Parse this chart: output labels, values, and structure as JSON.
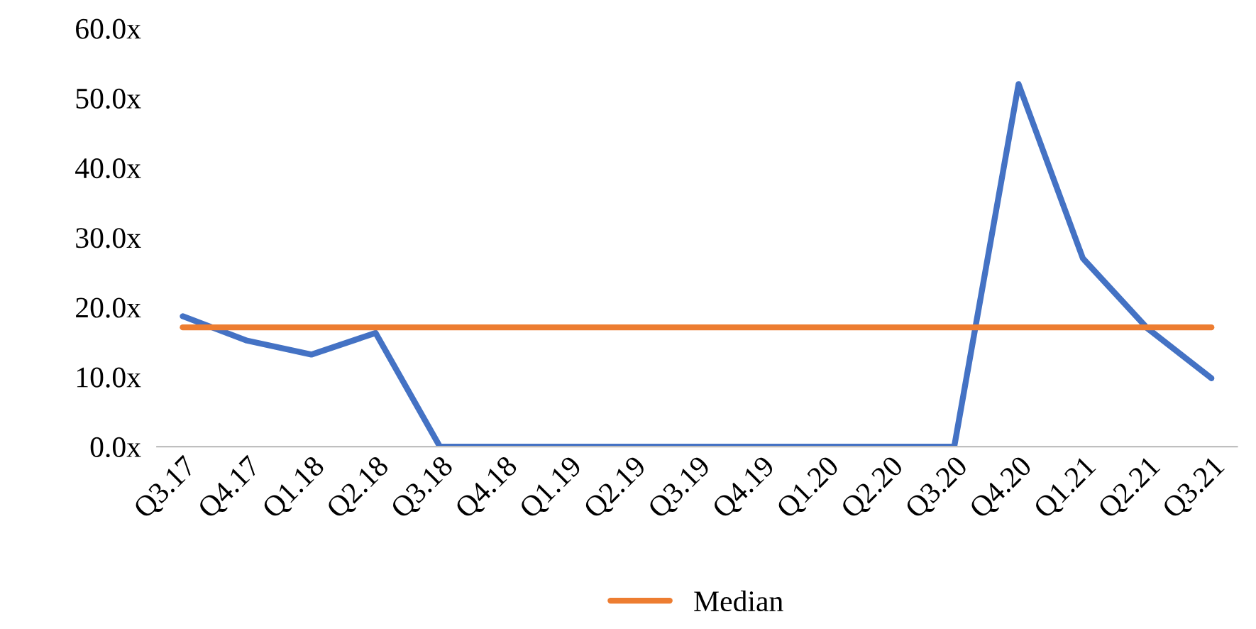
{
  "chart_data": {
    "type": "line",
    "categories": [
      "Q3.17",
      "Q4.17",
      "Q1.18",
      "Q2.18",
      "Q3.18",
      "Q4.18",
      "Q1.19",
      "Q2.19",
      "Q3.19",
      "Q4.19",
      "Q1.20",
      "Q2.20",
      "Q3.20",
      "Q4.20",
      "Q1.21",
      "Q2.21",
      "Q3.21"
    ],
    "series": [
      {
        "color": "#4472c4",
        "values": [
          18.7,
          15.2,
          13.2,
          16.3,
          0,
          0,
          0,
          0,
          0,
          0,
          0,
          0,
          0,
          52,
          27,
          17,
          9.8
        ]
      },
      {
        "name": "Median",
        "color": "#ed7d31",
        "values": [
          17.1,
          17.1,
          17.1,
          17.1,
          17.1,
          17.1,
          17.1,
          17.1,
          17.1,
          17.1,
          17.1,
          17.1,
          17.1,
          17.1,
          17.1,
          17.1,
          17.1
        ]
      }
    ],
    "ylim": [
      0,
      60
    ],
    "yticks": [
      {
        "value": 0,
        "label": "0.0x"
      },
      {
        "value": 10,
        "label": "10.0x"
      },
      {
        "value": 20,
        "label": "20.0x"
      },
      {
        "value": 30,
        "label": "30.0x"
      },
      {
        "value": 40,
        "label": "40.0x"
      },
      {
        "value": 50,
        "label": "50.0x"
      },
      {
        "value": 60,
        "label": "60.0x"
      }
    ],
    "grid": false,
    "legend": "bottom",
    "line_style": "solid"
  }
}
